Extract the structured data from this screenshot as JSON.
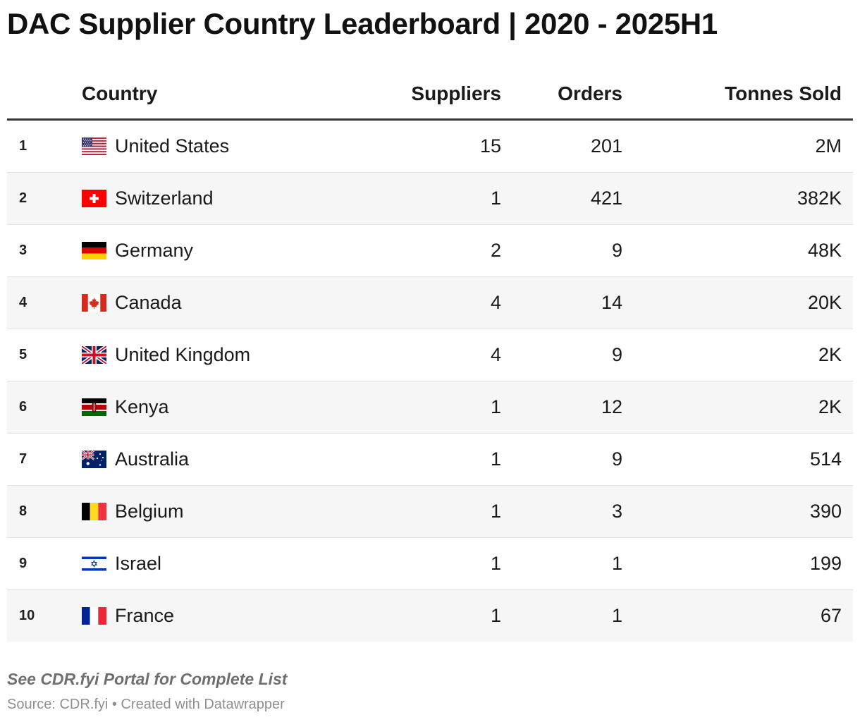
{
  "title": "DAC Supplier Country Leaderboard | 2020 - 2025H1",
  "chart_data": {
    "type": "table",
    "title": "DAC Supplier Country Leaderboard | 2020 - 2025H1",
    "columns": [
      "",
      "Country",
      "Suppliers",
      "Orders",
      "Tonnes Sold"
    ],
    "rows": [
      {
        "rank": "1",
        "country": "United States",
        "flag": "us-flag",
        "suppliers": "15",
        "orders": "201",
        "tonnes": "2M"
      },
      {
        "rank": "2",
        "country": "Switzerland",
        "flag": "switzerland-flag",
        "suppliers": "1",
        "orders": "421",
        "tonnes": "382K"
      },
      {
        "rank": "3",
        "country": "Germany",
        "flag": "germany-flag",
        "suppliers": "2",
        "orders": "9",
        "tonnes": "48K"
      },
      {
        "rank": "4",
        "country": "Canada",
        "flag": "canada-flag",
        "suppliers": "4",
        "orders": "14",
        "tonnes": "20K"
      },
      {
        "rank": "5",
        "country": "United Kingdom",
        "flag": "uk-flag",
        "suppliers": "4",
        "orders": "9",
        "tonnes": "2K"
      },
      {
        "rank": "6",
        "country": "Kenya",
        "flag": "kenya-flag",
        "suppliers": "1",
        "orders": "12",
        "tonnes": "2K"
      },
      {
        "rank": "7",
        "country": "Australia",
        "flag": "australia-flag",
        "suppliers": "1",
        "orders": "9",
        "tonnes": "514"
      },
      {
        "rank": "8",
        "country": "Belgium",
        "flag": "belgium-flag",
        "suppliers": "1",
        "orders": "3",
        "tonnes": "390"
      },
      {
        "rank": "9",
        "country": "Israel",
        "flag": "israel-flag",
        "suppliers": "1",
        "orders": "1",
        "tonnes": "199"
      },
      {
        "rank": "10",
        "country": "France",
        "flag": "france-flag",
        "suppliers": "1",
        "orders": "1",
        "tonnes": "67"
      }
    ]
  },
  "footer": {
    "note": "See CDR.fyi Portal for Complete List",
    "source": "Source: CDR.fyi • Created with Datawrapper"
  }
}
